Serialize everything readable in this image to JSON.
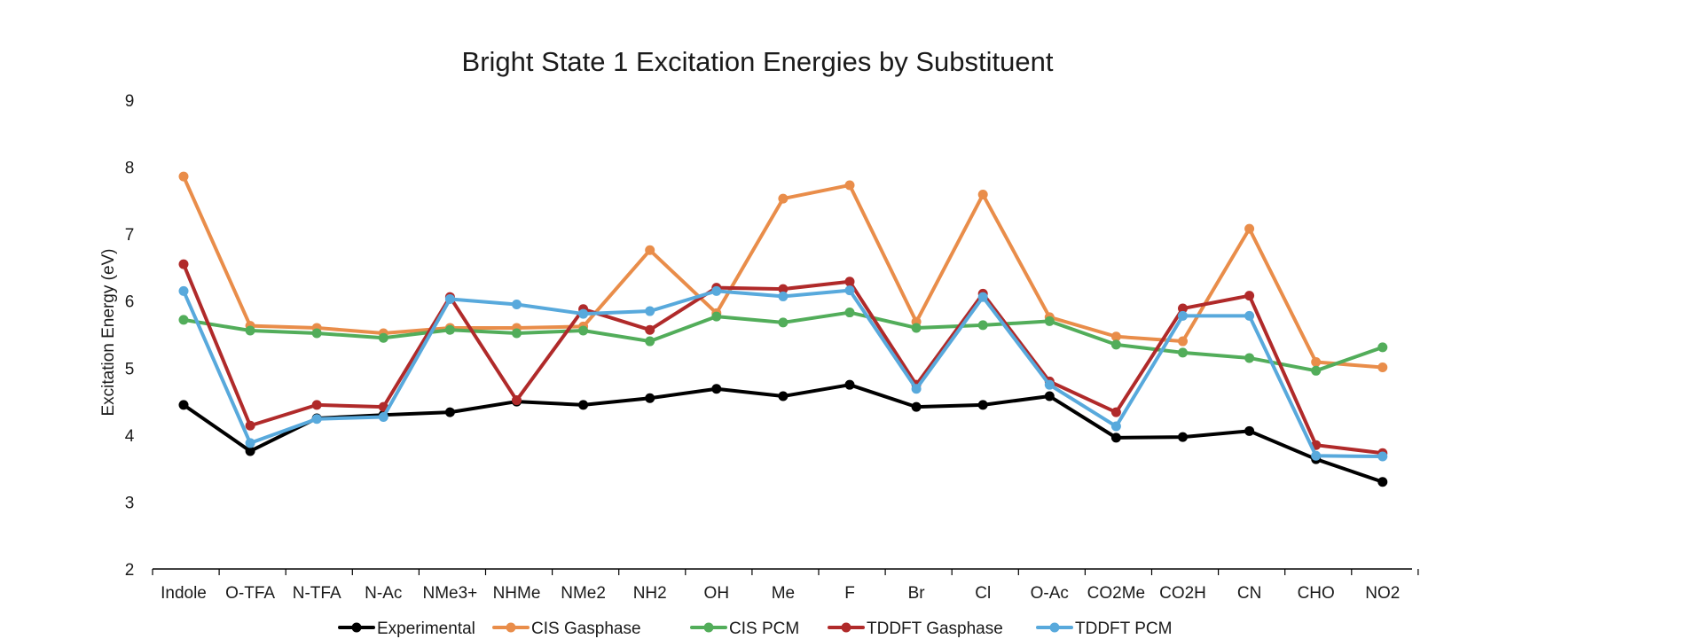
{
  "chart_data": {
    "type": "line",
    "title": "Bright State 1 Excitation Energies by Substituent",
    "xlabel": "",
    "ylabel": "Excitation Energy (eV)",
    "ylim": [
      2,
      9
    ],
    "yticks": [
      2,
      3,
      4,
      5,
      6,
      7,
      8,
      9
    ],
    "grid": false,
    "legend_position": "bottom",
    "categories": [
      "Indole",
      "O-TFA",
      "N-TFA",
      "N-Ac",
      "NMe3+",
      "NHMe",
      "NMe2",
      "NH2",
      "OH",
      "Me",
      "F",
      "Br",
      "Cl",
      "O-Ac",
      "CO2Me",
      "CO2H",
      "CN",
      "CHO",
      "NO2"
    ],
    "series": [
      {
        "name": "Experimental",
        "color": "#000000",
        "values": [
          4.45,
          3.76,
          4.25,
          4.3,
          4.34,
          4.5,
          4.45,
          4.55,
          4.69,
          4.58,
          4.75,
          4.42,
          4.45,
          4.58,
          3.96,
          3.97,
          4.06,
          3.64,
          3.3
        ]
      },
      {
        "name": "CIS Gasphase",
        "color": "#e98d4a",
        "values": [
          7.86,
          5.63,
          5.6,
          5.52,
          5.6,
          5.6,
          5.62,
          6.76,
          5.82,
          7.53,
          7.73,
          5.69,
          7.59,
          5.76,
          5.47,
          5.4,
          7.08,
          5.09,
          5.01
        ]
      },
      {
        "name": "CIS PCM",
        "color": "#52ad5a",
        "values": [
          5.72,
          5.56,
          5.52,
          5.45,
          5.57,
          5.52,
          5.56,
          5.4,
          5.77,
          5.68,
          5.83,
          5.6,
          5.64,
          5.7,
          5.35,
          5.23,
          5.15,
          4.96,
          5.31
        ]
      },
      {
        "name": "TDDFT Gasphase",
        "color": "#b02a2a",
        "values": [
          6.55,
          4.14,
          4.45,
          4.42,
          6.06,
          4.52,
          5.88,
          5.57,
          6.2,
          6.18,
          6.29,
          4.75,
          6.11,
          4.8,
          4.34,
          5.89,
          6.08,
          3.85,
          3.73
        ]
      },
      {
        "name": "TDDFT PCM",
        "color": "#58a9dc",
        "values": [
          6.15,
          3.88,
          4.24,
          4.27,
          6.03,
          5.95,
          5.81,
          5.85,
          6.15,
          6.07,
          6.16,
          4.69,
          6.06,
          4.75,
          4.13,
          5.78,
          5.78,
          3.69,
          3.68
        ]
      }
    ]
  }
}
